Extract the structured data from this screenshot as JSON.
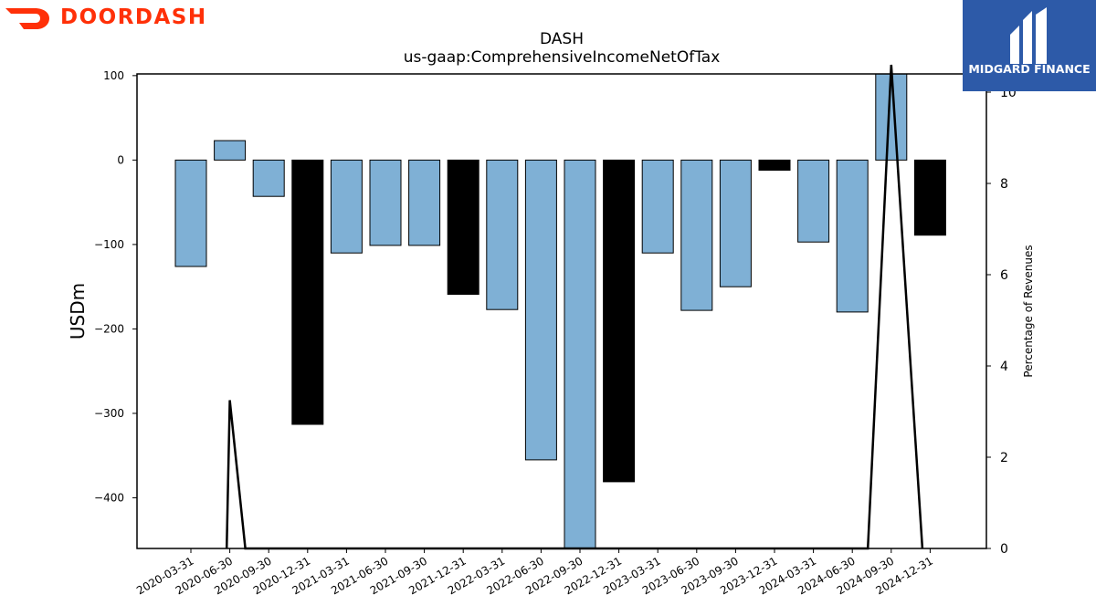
{
  "branding": {
    "company": "DOORDASH",
    "company_color": "#ff3008",
    "partner": "MIDGARD FINANCE",
    "partner_color": "#2d5aa8",
    "company_logo_icon": "doordash-dash-icon",
    "partner_logo_icon": "midgard-mark-icon"
  },
  "chart_data": {
    "type": "bar",
    "title": "DASH",
    "subtitle": "us-gaap:ComprehensiveIncomeNetOfTax",
    "ylabel": "USDm",
    "y2label": "Percentage of Revenues",
    "ylim": [
      -460,
      102
    ],
    "y2lim": [
      0,
      10.4
    ],
    "yticks": [
      100,
      0,
      -100,
      -200,
      -300,
      -400
    ],
    "ytick_labels": [
      "100",
      "0",
      "−100",
      "−200",
      "−300",
      "−400"
    ],
    "y2ticks": [
      0,
      2,
      4,
      6,
      8,
      10
    ],
    "y2tick_labels": [
      "0",
      "2",
      "4",
      "6",
      "8",
      "10"
    ],
    "categories": [
      "2020-03-31",
      "2020-06-30",
      "2020-09-30",
      "2020-12-31",
      "2021-03-31",
      "2021-06-30",
      "2021-09-30",
      "2021-12-31",
      "2022-03-31",
      "2022-06-30",
      "2022-09-30",
      "2022-12-31",
      "2023-03-31",
      "2023-06-30",
      "2023-09-30",
      "2023-12-31",
      "2024-03-31",
      "2024-06-30",
      "2024-09-30",
      "2024-12-31"
    ],
    "values": [
      -126,
      23,
      -43,
      -313,
      -110,
      -101,
      -101,
      -159,
      -177,
      -355,
      -460,
      -381,
      -110,
      -178,
      -150,
      -12,
      -97,
      -180,
      102,
      -89
    ],
    "bar_colors": [
      "#7fb0d5",
      "#7fb0d5",
      "#7fb0d5",
      "#000000",
      "#7fb0d5",
      "#7fb0d5",
      "#7fb0d5",
      "#000000",
      "#7fb0d5",
      "#7fb0d5",
      "#7fb0d5",
      "#000000",
      "#7fb0d5",
      "#7fb0d5",
      "#7fb0d5",
      "#000000",
      "#7fb0d5",
      "#7fb0d5",
      "#7fb0d5",
      "#000000"
    ],
    "line_series": {
      "axis": "right",
      "x_index": [
        0.92,
        1.0,
        1.4,
        17.4,
        18.0,
        18.8
      ],
      "values": [
        0,
        3.25,
        0,
        0,
        10.6,
        0
      ]
    },
    "grid": false
  }
}
